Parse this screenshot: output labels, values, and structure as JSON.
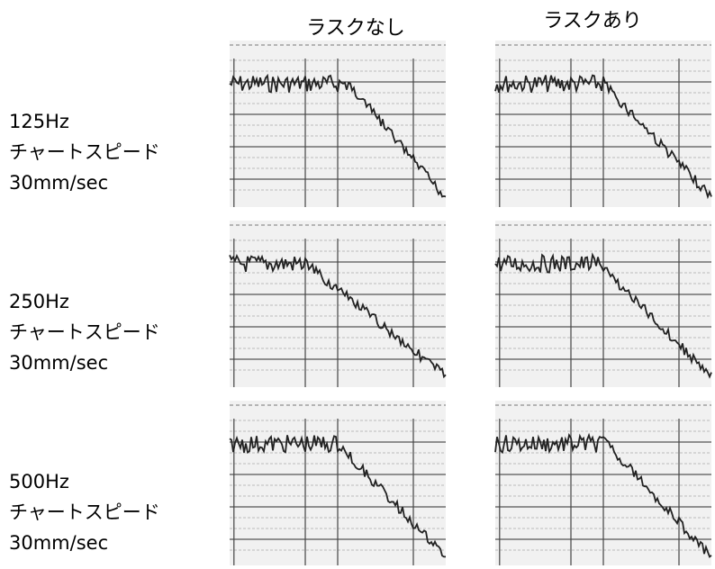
{
  "columns": [
    "ラスクなし",
    "ラスクあり"
  ],
  "rows": [
    {
      "lines": [
        "125Hz",
        "チャートスピード",
        "30mm/sec"
      ]
    },
    {
      "lines": [
        "250Hz",
        "チャートスピード",
        "30mm/sec"
      ]
    },
    {
      "lines": [
        "500Hz",
        "チャートスピード",
        "30mm/sec"
      ]
    }
  ]
}
